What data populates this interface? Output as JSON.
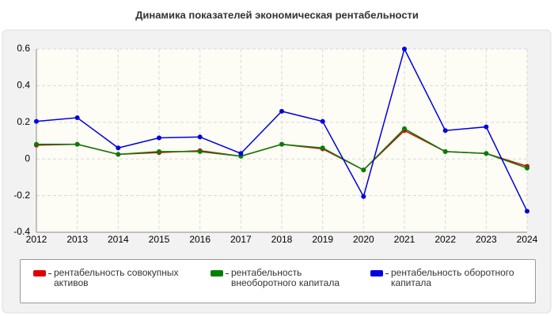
{
  "chart_data": {
    "type": "line",
    "title": "Динамика показателей экономическая рентабельности",
    "categories": [
      "2012",
      "2013",
      "2014",
      "2015",
      "2016",
      "2017",
      "2018",
      "2019",
      "2020",
      "2021",
      "2022",
      "2023",
      "2024"
    ],
    "series": [
      {
        "name": "рентабельность совокупных активов",
        "color": "#e00000",
        "values": [
          0.075,
          0.08,
          0.025,
          0.035,
          0.045,
          0.015,
          0.08,
          0.055,
          -0.06,
          0.155,
          0.04,
          0.03,
          -0.04
        ]
      },
      {
        "name": "рентабельность внеоборотного капитала",
        "color": "#008000",
        "values": [
          0.08,
          0.08,
          0.025,
          0.04,
          0.04,
          0.015,
          0.08,
          0.06,
          -0.06,
          0.165,
          0.04,
          0.03,
          -0.05
        ]
      },
      {
        "name": "рентабельность оборотного капитала",
        "color": "#0000e0",
        "values": [
          0.205,
          0.225,
          0.06,
          0.115,
          0.12,
          0.03,
          0.26,
          0.205,
          -0.205,
          0.6,
          0.155,
          0.175,
          -0.285
        ]
      }
    ],
    "ylim": [
      -0.4,
      0.6
    ],
    "yticks": [
      -0.4,
      -0.2,
      0,
      0.2,
      0.4,
      0.6
    ],
    "grid": true
  }
}
